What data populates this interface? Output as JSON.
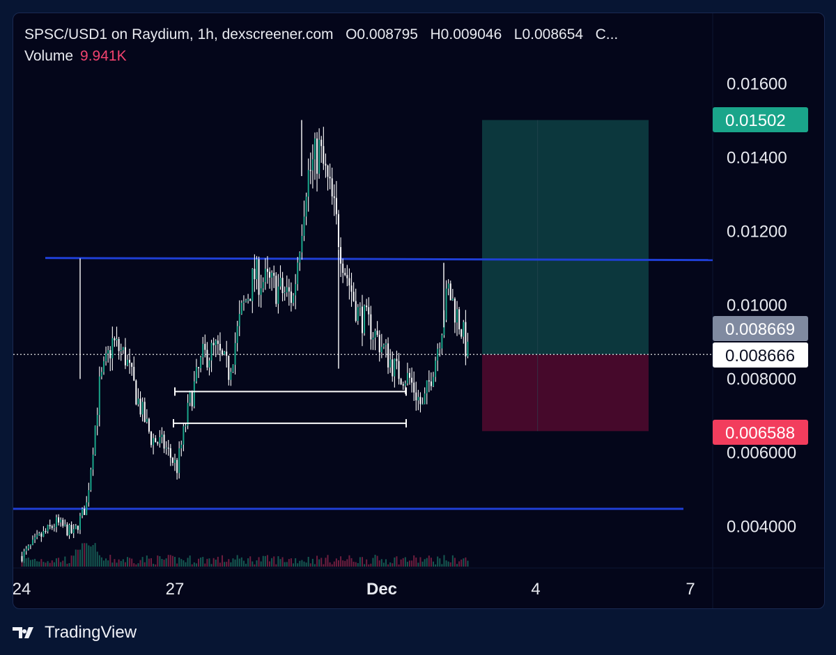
{
  "legend": {
    "title": "SPSC/USD1 on Raydium, 1h, dexscreener.com",
    "open": "O0.008795",
    "high": "H0.009046",
    "low": "L0.008654",
    "close": "C...",
    "volume_label": "Volume",
    "volume_value": "9.941K"
  },
  "footer": {
    "brand": "TradingView",
    "logo_icon": "tradingview-logo-icon"
  },
  "colors": {
    "background": "#04061a",
    "candle": "#ffffff",
    "candle_body": "#1aa58a",
    "level_line": "#1f3fd6",
    "target_zone": "#0d3a3f",
    "stop_zone": "#4a0a2c",
    "target_tag": "#1aa58a",
    "stop_tag": "#f23d5d",
    "current_tag": "#808aa0",
    "last_tag": "#ffffff"
  },
  "chart_data": {
    "type": "candlestick",
    "timeframe": "1h",
    "x_ticks": [
      "24",
      "27",
      "Dec",
      "4",
      "7"
    ],
    "y_ticks": [
      "0.01600",
      "0.01400",
      "0.01200",
      "0.01000",
      "0.008000",
      "0.006000",
      "0.004000"
    ],
    "y_range": [
      0.003,
      0.0167
    ],
    "price_tags": [
      {
        "label": "0.01502",
        "value": 0.01502,
        "kind": "target"
      },
      {
        "label": "0.008669",
        "value": 0.008669,
        "kind": "current"
      },
      {
        "label": "0.008666",
        "value": 0.008666,
        "kind": "last"
      },
      {
        "label": "0.006588",
        "value": 0.006588,
        "kind": "stop"
      }
    ],
    "horizontal_levels": [
      0.01128,
      0.00448
    ],
    "range_brackets": [
      {
        "value": 0.00766,
        "from": "Nov 27",
        "to": "Nov 30 evening"
      },
      {
        "value": 0.0068,
        "from": "Nov 26 evening",
        "to": "Nov 30 evening"
      }
    ],
    "position": {
      "entry": 0.008666,
      "target": 0.01502,
      "stop": 0.006588,
      "from": "Dec 2 afternoon",
      "to": "Dec 5 afternoon"
    },
    "price_path": [
      [
        "Nov 24 00:00",
        0.0032
      ],
      [
        "Nov 24 08:00",
        0.0037
      ],
      [
        "Nov 24 16:00",
        0.0041
      ],
      [
        "Nov 25 00:00",
        0.0038
      ],
      [
        "Nov 25 06:00",
        0.0046
      ],
      [
        "Nov 25 12:00",
        0.0078
      ],
      [
        "Nov 25 18:00",
        0.009
      ],
      [
        "Nov 26 00:00",
        0.0086
      ],
      [
        "Nov 26 06:00",
        0.0074
      ],
      [
        "Nov 26 12:00",
        0.0064
      ],
      [
        "Nov 26 18:00",
        0.0062
      ],
      [
        "Nov 27 00:00",
        0.0056
      ],
      [
        "Nov 27 06:00",
        0.0074
      ],
      [
        "Nov 27 12:00",
        0.0086
      ],
      [
        "Nov 27 18:00",
        0.0088
      ],
      [
        "Nov 28 00:00",
        0.0082
      ],
      [
        "Nov 28 06:00",
        0.0098
      ],
      [
        "Nov 28 12:00",
        0.0108
      ],
      [
        "Nov 28 18:00",
        0.0106
      ],
      [
        "Nov 29 00:00",
        0.0104
      ],
      [
        "Nov 29 06:00",
        0.0102
      ],
      [
        "Nov 29 12:00",
        0.0134
      ],
      [
        "Nov 29 18:00",
        0.0142
      ],
      [
        "Nov 30 00:00",
        0.0128
      ],
      [
        "Nov 30 06:00",
        0.011
      ],
      [
        "Nov 30 12:00",
        0.0098
      ],
      [
        "Nov 30 18:00",
        0.0094
      ],
      [
        "Dec 1 00:00",
        0.0088
      ],
      [
        "Dec 1 06:00",
        0.0082
      ],
      [
        "Dec 1 12:00",
        0.008
      ],
      [
        "Dec 1 18:00",
        0.0072
      ],
      [
        "Dec 2 00:00",
        0.0086
      ],
      [
        "Dec 2 06:00",
        0.0104
      ],
      [
        "Dec 2 12:00",
        0.0094
      ],
      [
        "Dec 2 15:00",
        0.00867
      ]
    ],
    "volume_last": "9.941K"
  }
}
